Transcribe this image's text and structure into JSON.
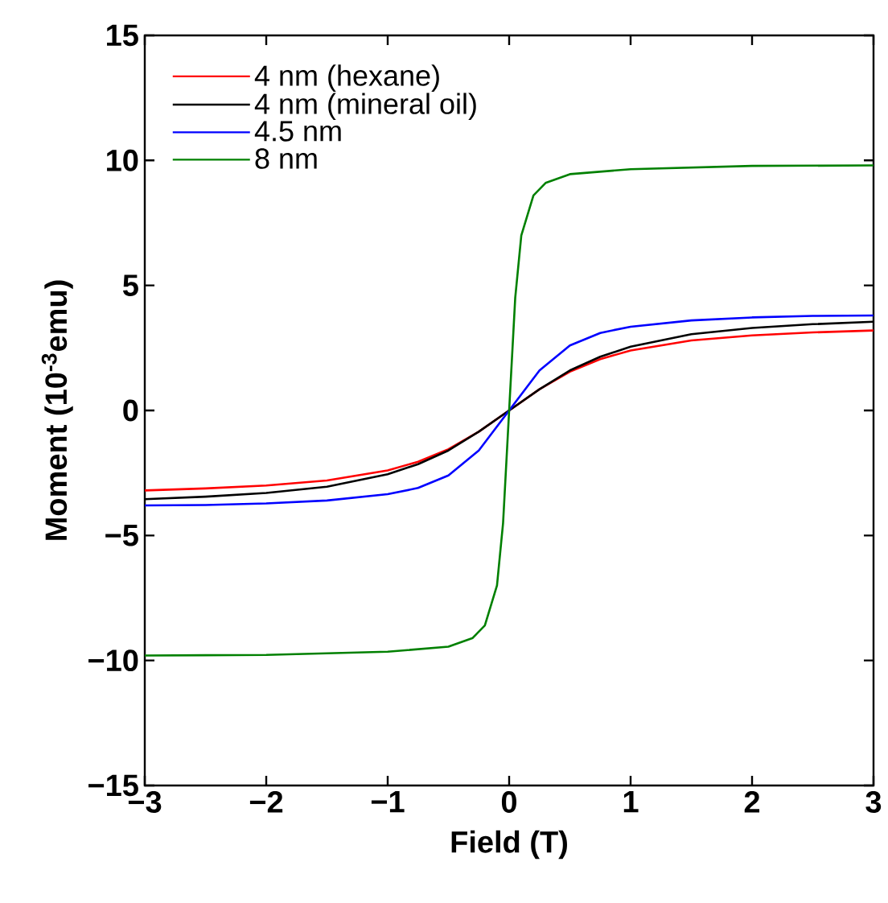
{
  "chart_data": {
    "type": "line",
    "xlabel": "Field (T)",
    "ylabel": "Moment (10$^{-3}$emu)",
    "xlim": [
      -3,
      3
    ],
    "ylim": [
      -15,
      15
    ],
    "xticks": [
      {
        "value": -3,
        "label": "−3"
      },
      {
        "value": -2,
        "label": "−2"
      },
      {
        "value": -1,
        "label": "−1"
      },
      0,
      1,
      2,
      3
    ],
    "yticks": [
      {
        "value": -15,
        "label": "−15"
      },
      {
        "value": -10,
        "label": "−10"
      },
      {
        "value": -5,
        "label": "−5"
      },
      0,
      5,
      10,
      15
    ],
    "grid": false,
    "legend": "top left",
    "marker": "none",
    "line_style": "solid",
    "series": [
      {
        "name": "4 nm (hexane)",
        "color": "#ff0000",
        "x": [
          -3,
          -2.5,
          -2,
          -1.5,
          -1,
          -0.75,
          -0.5,
          -0.25,
          0,
          0.25,
          0.5,
          0.75,
          1,
          1.5,
          2,
          2.5,
          3
        ],
        "values": [
          -3.2,
          -3.12,
          -3.0,
          -2.8,
          -2.4,
          -2.05,
          -1.55,
          -0.85,
          0,
          0.85,
          1.55,
          2.05,
          2.4,
          2.8,
          3.0,
          3.12,
          3.2
        ]
      },
      {
        "name": "4 nm (mineral oil)",
        "color": "#000000",
        "x": [
          -3,
          -2.5,
          -2,
          -1.5,
          -1,
          -0.75,
          -0.5,
          -0.25,
          0,
          0.25,
          0.5,
          0.75,
          1,
          1.5,
          2,
          2.5,
          3
        ],
        "values": [
          -3.55,
          -3.45,
          -3.3,
          -3.05,
          -2.55,
          -2.15,
          -1.6,
          -0.85,
          0,
          0.85,
          1.6,
          2.15,
          2.55,
          3.05,
          3.3,
          3.45,
          3.55
        ]
      },
      {
        "name": "4.5 nm",
        "color": "#0000ff",
        "x": [
          -3,
          -2.5,
          -2,
          -1.5,
          -1,
          -0.75,
          -0.5,
          -0.25,
          0,
          0.25,
          0.5,
          0.75,
          1,
          1.5,
          2,
          2.5,
          3
        ],
        "values": [
          -3.8,
          -3.78,
          -3.72,
          -3.6,
          -3.35,
          -3.1,
          -2.6,
          -1.6,
          0,
          1.6,
          2.6,
          3.1,
          3.35,
          3.6,
          3.72,
          3.78,
          3.8
        ]
      },
      {
        "name": "8 nm",
        "color": "#008000",
        "x": [
          -3,
          -2,
          -1,
          -0.5,
          -0.3,
          -0.2,
          -0.1,
          -0.05,
          0,
          0.05,
          0.1,
          0.2,
          0.3,
          0.5,
          1,
          2,
          3
        ],
        "values": [
          -9.8,
          -9.78,
          -9.65,
          -9.45,
          -9.1,
          -8.6,
          -7,
          -4.5,
          0,
          4.5,
          7,
          8.6,
          9.1,
          9.45,
          9.65,
          9.78,
          9.8
        ]
      }
    ]
  }
}
